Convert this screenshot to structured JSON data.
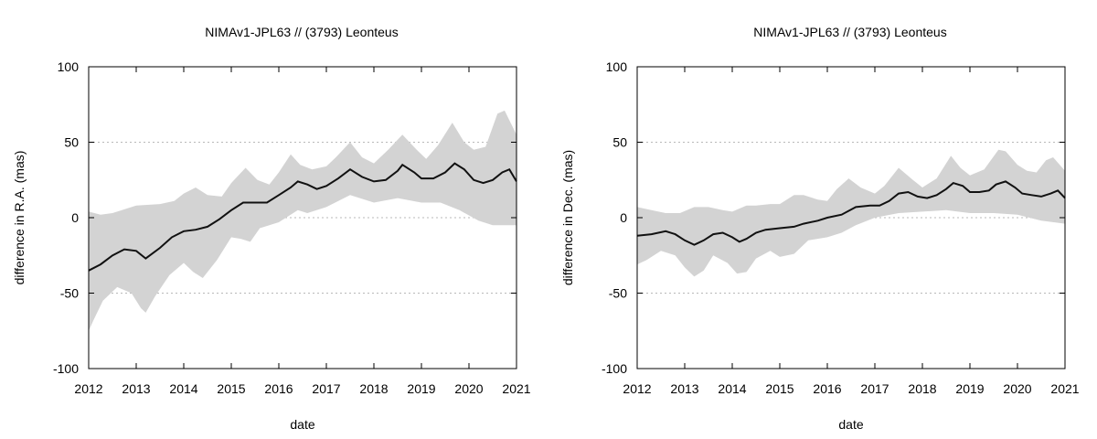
{
  "chart_data": [
    {
      "type": "area",
      "title": "NIMAv1-JPL63 // (3793) Leonteus",
      "xlabel": "date",
      "ylabel": "difference in R.A. (mas)",
      "xlim": [
        2012,
        2021
      ],
      "ylim": [
        -100,
        100
      ],
      "xticks": [
        "2012",
        "2013",
        "2014",
        "2015",
        "2016",
        "2017",
        "2018",
        "2019",
        "2020",
        "2021"
      ],
      "yticks": [
        "100",
        "50",
        "0",
        "-50",
        "-100"
      ],
      "grid_y": [
        50,
        0,
        -50
      ],
      "series": [
        {
          "name": "mean",
          "x": [
            2012.0,
            2012.25,
            2012.5,
            2012.75,
            2013.0,
            2013.2,
            2013.5,
            2013.75,
            2014.0,
            2014.25,
            2014.5,
            2014.75,
            2015.0,
            2015.25,
            2015.5,
            2015.75,
            2016.0,
            2016.25,
            2016.4,
            2016.6,
            2016.8,
            2017.0,
            2017.25,
            2017.5,
            2017.75,
            2018.0,
            2018.25,
            2018.5,
            2018.6,
            2018.85,
            2019.0,
            2019.25,
            2019.5,
            2019.7,
            2019.9,
            2020.1,
            2020.3,
            2020.5,
            2020.7,
            2020.85,
            2021.0
          ],
          "values": [
            -35,
            -31,
            -25,
            -21,
            -22,
            -27,
            -20,
            -13,
            -9,
            -8,
            -6,
            -1,
            5,
            10,
            10,
            10,
            15,
            20,
            24,
            22,
            19,
            21,
            26,
            32,
            27,
            24,
            25,
            31,
            35,
            30,
            26,
            26,
            30,
            36,
            32,
            25,
            23,
            25,
            30,
            32,
            24
          ]
        },
        {
          "name": "upper",
          "x": [
            2012.0,
            2012.25,
            2012.5,
            2013.0,
            2013.5,
            2013.8,
            2014.0,
            2014.25,
            2014.5,
            2014.8,
            2015.0,
            2015.3,
            2015.55,
            2015.8,
            2016.0,
            2016.25,
            2016.45,
            2016.7,
            2017.0,
            2017.2,
            2017.5,
            2017.75,
            2018.0,
            2018.3,
            2018.6,
            2018.9,
            2019.1,
            2019.35,
            2019.65,
            2019.9,
            2020.1,
            2020.35,
            2020.6,
            2020.75,
            2021.0
          ],
          "values": [
            4,
            2,
            3,
            8,
            9,
            11,
            16,
            20,
            15,
            14,
            23,
            33,
            25,
            22,
            30,
            42,
            35,
            32,
            34,
            40,
            50,
            40,
            36,
            45,
            55,
            45,
            39,
            48,
            63,
            50,
            45,
            47,
            69,
            71,
            55
          ]
        },
        {
          "name": "lower",
          "x": [
            2012.0,
            2012.1,
            2012.3,
            2012.6,
            2012.9,
            2013.1,
            2013.2,
            2013.4,
            2013.7,
            2014.0,
            2014.2,
            2014.4,
            2014.7,
            2015.0,
            2015.2,
            2015.4,
            2015.6,
            2016.0,
            2016.4,
            2016.6,
            2017.0,
            2017.5,
            2018.0,
            2018.5,
            2019.0,
            2019.4,
            2019.8,
            2020.2,
            2020.5,
            2020.8,
            2021.0
          ],
          "values": [
            -75,
            -68,
            -55,
            -46,
            -50,
            -60,
            -63,
            -52,
            -38,
            -30,
            -36,
            -40,
            -28,
            -13,
            -14,
            -16,
            -7,
            -3,
            5,
            3,
            7,
            15,
            10,
            13,
            10,
            10,
            5,
            -2,
            -5,
            -5,
            -5
          ]
        }
      ]
    },
    {
      "type": "area",
      "title": "NIMAv1-JPL63 // (3793) Leonteus",
      "xlabel": "date",
      "ylabel": "difference in Dec. (mas)",
      "xlim": [
        2012,
        2021
      ],
      "ylim": [
        -100,
        100
      ],
      "xticks": [
        "2012",
        "2013",
        "2014",
        "2015",
        "2016",
        "2017",
        "2018",
        "2019",
        "2020",
        "2021"
      ],
      "yticks": [
        "100",
        "50",
        "0",
        "-50",
        "-100"
      ],
      "grid_y": [
        50,
        0,
        -50
      ],
      "series": [
        {
          "name": "mean",
          "x": [
            2012.0,
            2012.3,
            2012.6,
            2012.8,
            2013.0,
            2013.2,
            2013.4,
            2013.6,
            2013.8,
            2014.0,
            2014.15,
            2014.3,
            2014.5,
            2014.7,
            2015.0,
            2015.3,
            2015.5,
            2015.8,
            2016.0,
            2016.3,
            2016.6,
            2016.9,
            2017.1,
            2017.3,
            2017.5,
            2017.7,
            2017.9,
            2018.1,
            2018.3,
            2018.5,
            2018.65,
            2018.85,
            2019.0,
            2019.2,
            2019.4,
            2019.55,
            2019.75,
            2019.95,
            2020.1,
            2020.3,
            2020.5,
            2020.7,
            2020.85,
            2021.0
          ],
          "values": [
            -12,
            -11,
            -9,
            -11,
            -15,
            -18,
            -15,
            -11,
            -10,
            -13,
            -16,
            -14,
            -10,
            -8,
            -7,
            -6,
            -4,
            -2,
            0,
            2,
            7,
            8,
            8,
            11,
            16,
            17,
            14,
            13,
            15,
            19,
            23,
            21,
            17,
            17,
            18,
            22,
            24,
            20,
            16,
            15,
            14,
            16,
            18,
            13
          ]
        },
        {
          "name": "upper",
          "x": [
            2012.0,
            2012.3,
            2012.6,
            2012.9,
            2013.2,
            2013.5,
            2013.8,
            2014.0,
            2014.3,
            2014.5,
            2014.8,
            2015.0,
            2015.3,
            2015.5,
            2015.8,
            2016.0,
            2016.2,
            2016.45,
            2016.7,
            2017.0,
            2017.2,
            2017.5,
            2017.8,
            2018.0,
            2018.3,
            2018.6,
            2018.8,
            2019.0,
            2019.3,
            2019.6,
            2019.75,
            2020.0,
            2020.2,
            2020.4,
            2020.6,
            2020.75,
            2021.0
          ],
          "values": [
            7,
            5,
            3,
            3,
            7,
            7,
            5,
            4,
            8,
            8,
            9,
            9,
            15,
            15,
            12,
            11,
            19,
            26,
            20,
            16,
            21,
            33,
            25,
            20,
            26,
            41,
            33,
            28,
            32,
            45,
            44,
            35,
            31,
            30,
            38,
            40,
            31
          ]
        },
        {
          "name": "lower",
          "x": [
            2012.0,
            2012.2,
            2012.5,
            2012.8,
            2013.0,
            2013.2,
            2013.4,
            2013.6,
            2013.9,
            2014.1,
            2014.3,
            2014.5,
            2014.8,
            2015.0,
            2015.3,
            2015.6,
            2016.0,
            2016.3,
            2016.6,
            2017.0,
            2017.5,
            2018.0,
            2018.5,
            2019.0,
            2019.5,
            2020.0,
            2020.5,
            2021.0
          ],
          "values": [
            -31,
            -28,
            -22,
            -25,
            -33,
            -39,
            -35,
            -25,
            -30,
            -37,
            -36,
            -27,
            -22,
            -26,
            -24,
            -15,
            -13,
            -10,
            -5,
            0,
            3,
            4,
            5,
            3,
            3,
            2,
            -2,
            -4
          ]
        }
      ]
    }
  ]
}
